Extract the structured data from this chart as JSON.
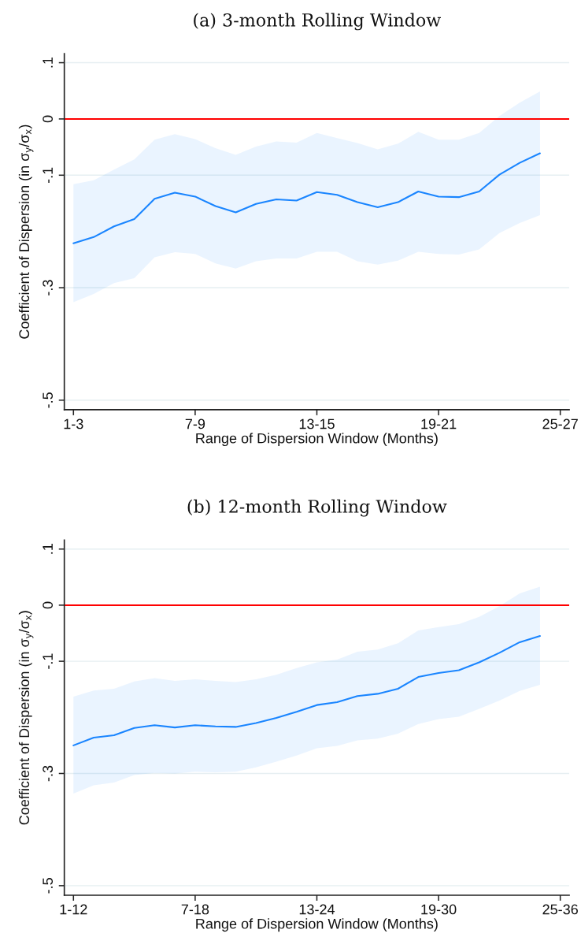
{
  "chart_data": [
    {
      "type": "line",
      "title": "(a) 3-month Rolling Window",
      "xlabel": "Range of Dispersion Window (Months)",
      "ylabel": "Coefficient of Dispersion (in σ$_{y}$/σ$_{x}$)",
      "categories": [
        "1-3",
        null,
        null,
        null,
        null,
        null,
        "7-9",
        null,
        null,
        null,
        null,
        null,
        "13-15",
        null,
        null,
        null,
        null,
        null,
        "19-21",
        null,
        null,
        null,
        null,
        null,
        "25-27"
      ],
      "series": [
        {
          "color": "#1a85ff",
          "values": [
            -0.221,
            -0.21,
            -0.191,
            -0.178,
            -0.142,
            -0.131,
            -0.138,
            -0.155,
            -0.166,
            -0.151,
            -0.143,
            -0.145,
            -0.13,
            -0.135,
            -0.148,
            -0.157,
            -0.148,
            -0.129,
            -0.138,
            -0.139,
            -0.129,
            -0.099,
            -0.078,
            -0.061,
            null
          ],
          "upper": [
            -0.116,
            -0.109,
            -0.09,
            -0.072,
            -0.037,
            -0.027,
            -0.036,
            -0.052,
            -0.064,
            -0.049,
            -0.04,
            -0.042,
            -0.025,
            -0.034,
            -0.043,
            -0.054,
            -0.044,
            -0.023,
            -0.037,
            -0.037,
            -0.025,
            0.005,
            0.029,
            0.049,
            null
          ],
          "lower": [
            -0.326,
            -0.311,
            -0.292,
            -0.283,
            -0.246,
            -0.237,
            -0.24,
            -0.257,
            -0.266,
            -0.253,
            -0.248,
            -0.248,
            -0.236,
            -0.236,
            -0.253,
            -0.259,
            -0.252,
            -0.236,
            -0.24,
            -0.241,
            -0.232,
            -0.203,
            -0.185,
            -0.171,
            null
          ]
        }
      ],
      "ylim": [
        -0.517,
        0.116
      ],
      "yticks": [
        {
          "value": 0.1,
          "label": ".1"
        },
        0,
        {
          "value": -0.1,
          "label": "-.1"
        },
        {
          "value": -0.3,
          "label": "-.3"
        },
        {
          "value": -0.5,
          "label": "-.5"
        }
      ],
      "grid": "y",
      "ref_lines": [
        {
          "axis": "y",
          "value": 0,
          "color": "#ff0000"
        }
      ]
    },
    {
      "type": "line",
      "title": "(b) 12-month Rolling Window",
      "xlabel": "Range of Dispersion Window (Months)",
      "ylabel": "Coefficient of Dispersion (in σ$_{y}$/σ$_{x}$)",
      "categories": [
        "1-12",
        null,
        null,
        null,
        null,
        null,
        "7-18",
        null,
        null,
        null,
        null,
        null,
        "13-24",
        null,
        null,
        null,
        null,
        null,
        "19-30",
        null,
        null,
        null,
        null,
        null,
        "25-36"
      ],
      "series": [
        {
          "color": "#1a85ff",
          "values": [
            -0.25,
            -0.236,
            -0.232,
            -0.219,
            -0.214,
            -0.218,
            -0.214,
            -0.216,
            -0.217,
            -0.21,
            -0.201,
            -0.19,
            -0.178,
            -0.173,
            -0.162,
            -0.158,
            -0.149,
            -0.128,
            -0.121,
            -0.116,
            -0.102,
            -0.085,
            -0.066,
            -0.055,
            null
          ],
          "upper": [
            -0.163,
            -0.152,
            -0.149,
            -0.136,
            -0.13,
            -0.135,
            -0.132,
            -0.135,
            -0.137,
            -0.132,
            -0.124,
            -0.112,
            -0.102,
            -0.097,
            -0.083,
            -0.079,
            -0.068,
            -0.045,
            -0.039,
            -0.034,
            -0.021,
            -0.002,
            0.021,
            0.033,
            null
          ],
          "lower": [
            -0.336,
            -0.321,
            -0.316,
            -0.303,
            -0.299,
            -0.3,
            -0.297,
            -0.298,
            -0.297,
            -0.289,
            -0.279,
            -0.268,
            -0.255,
            -0.251,
            -0.241,
            -0.238,
            -0.229,
            -0.212,
            -0.203,
            -0.199,
            -0.185,
            -0.17,
            -0.153,
            -0.142,
            null
          ]
        }
      ],
      "ylim": [
        -0.517,
        0.116
      ],
      "yticks": [
        {
          "value": 0.1,
          "label": ".1"
        },
        0,
        {
          "value": -0.1,
          "label": "-.1"
        },
        {
          "value": -0.3,
          "label": "-.3"
        },
        {
          "value": -0.5,
          "label": "-.5"
        }
      ],
      "grid": "y",
      "ref_lines": [
        {
          "axis": "y",
          "value": 0,
          "color": "#ff0000"
        }
      ]
    }
  ]
}
